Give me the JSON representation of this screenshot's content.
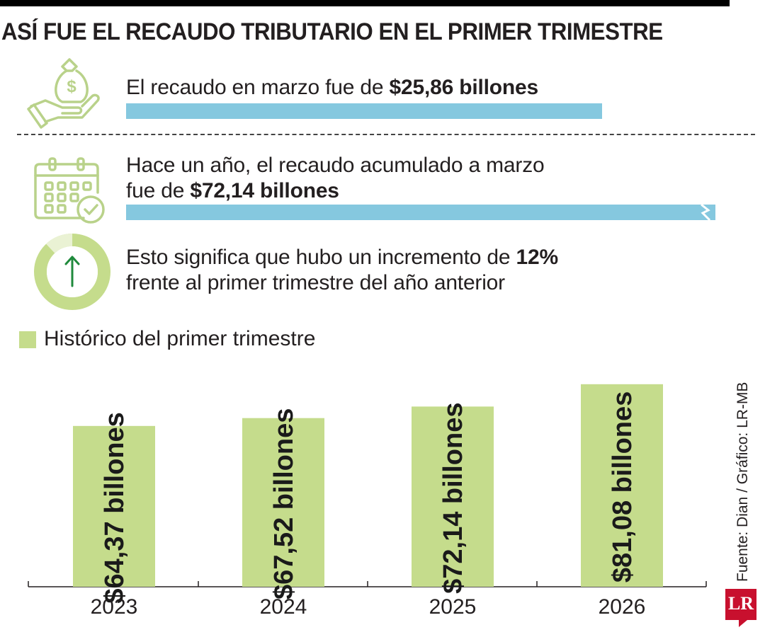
{
  "title": "ASÍ FUE EL RECAUDO TRIBUTARIO EN EL PRIMER TRIMESTRE",
  "facts": {
    "march": {
      "text": "El recaudo en marzo fue de ",
      "bold": "$25,86 billones",
      "bar_value": 25.86
    },
    "last_year": {
      "text_line1": "Hace un año, el recaudo acumulado a marzo",
      "text_line2": "fue de ",
      "bold": "$72,14 billones",
      "bar_value": 72.14
    },
    "increase": {
      "text_line1": "Esto significa que hubo un incremento de ",
      "bold": "12%",
      "text_line2": "frente al primer trimestre del año anterior",
      "percent": 12
    }
  },
  "icons": [
    "money-bag-hand-icon",
    "calendar-check-icon",
    "arrow-up-donut-icon"
  ],
  "colors": {
    "bar_blue": "#85c8df",
    "bar_green": "#c5dc8c",
    "icon_green": "#b9d28a",
    "arrow_green": "#1f8a3c",
    "logo_red": "#c8102e"
  },
  "legend": {
    "label": "Histórico del primer trimestre"
  },
  "chart_data": {
    "type": "bar",
    "title": "Histórico del primer trimestre",
    "categories": [
      "2023",
      "2024",
      "2025",
      "2026"
    ],
    "values": [
      64.37,
      67.52,
      72.14,
      81.08
    ],
    "value_labels": [
      "$64,37 billones",
      "$67,52 billones",
      "$72,14 billones",
      "$81,08 billones"
    ],
    "xlabel": "",
    "ylabel": "",
    "ylim": [
      0,
      85
    ],
    "grid": false
  },
  "source": "Fuente: Dian / Gráfico: LR-MB",
  "logo": "LR"
}
